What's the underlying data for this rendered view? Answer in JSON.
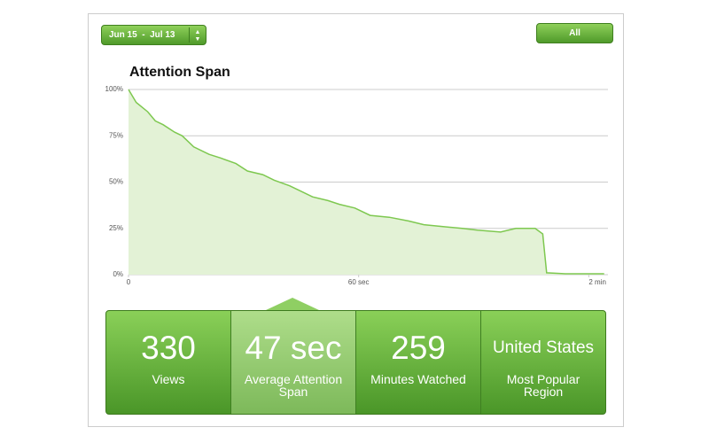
{
  "controls": {
    "date_range": "Jun 15  -  Jul 13",
    "filter": "All"
  },
  "chart_data": {
    "type": "area",
    "title": "Attention Span",
    "color": "#7ec850",
    "fill": "#e3f2d6",
    "grid": true,
    "x": [
      0,
      2,
      5,
      7,
      9,
      12,
      14,
      17,
      21,
      24,
      28,
      31,
      35,
      38,
      42,
      45,
      48,
      52,
      55,
      59,
      63,
      68,
      73,
      77,
      82,
      87,
      91,
      97,
      101,
      106,
      108,
      109,
      114,
      124
    ],
    "values": [
      100,
      93,
      88,
      83,
      81,
      77,
      75,
      69,
      65,
      63,
      60,
      56,
      54,
      51,
      48,
      45,
      42,
      40,
      38,
      36,
      32,
      31,
      29,
      27,
      26,
      25,
      24,
      23,
      25,
      25,
      22,
      1,
      0.5,
      0.5
    ],
    "xlim": [
      0,
      125
    ],
    "xticks": [
      0,
      {
        "value": 60,
        "label": "60 sec"
      },
      {
        "value": 120,
        "label": "2 min"
      }
    ],
    "ylim": [
      0,
      100
    ],
    "yticks": [
      {
        "value": 0,
        "label": "0%"
      },
      {
        "value": 25,
        "label": "25%"
      },
      {
        "value": 50,
        "label": "50%"
      },
      {
        "value": 75,
        "label": "75%"
      },
      {
        "value": 100,
        "label": "100%"
      }
    ]
  },
  "stats": [
    {
      "value": "330",
      "label": "Views"
    },
    {
      "value": "47 sec",
      "label": "Average Attention Span"
    },
    {
      "value": "259",
      "label": "Minutes Watched"
    },
    {
      "value": "United States",
      "label": "Most Popular Region"
    }
  ]
}
